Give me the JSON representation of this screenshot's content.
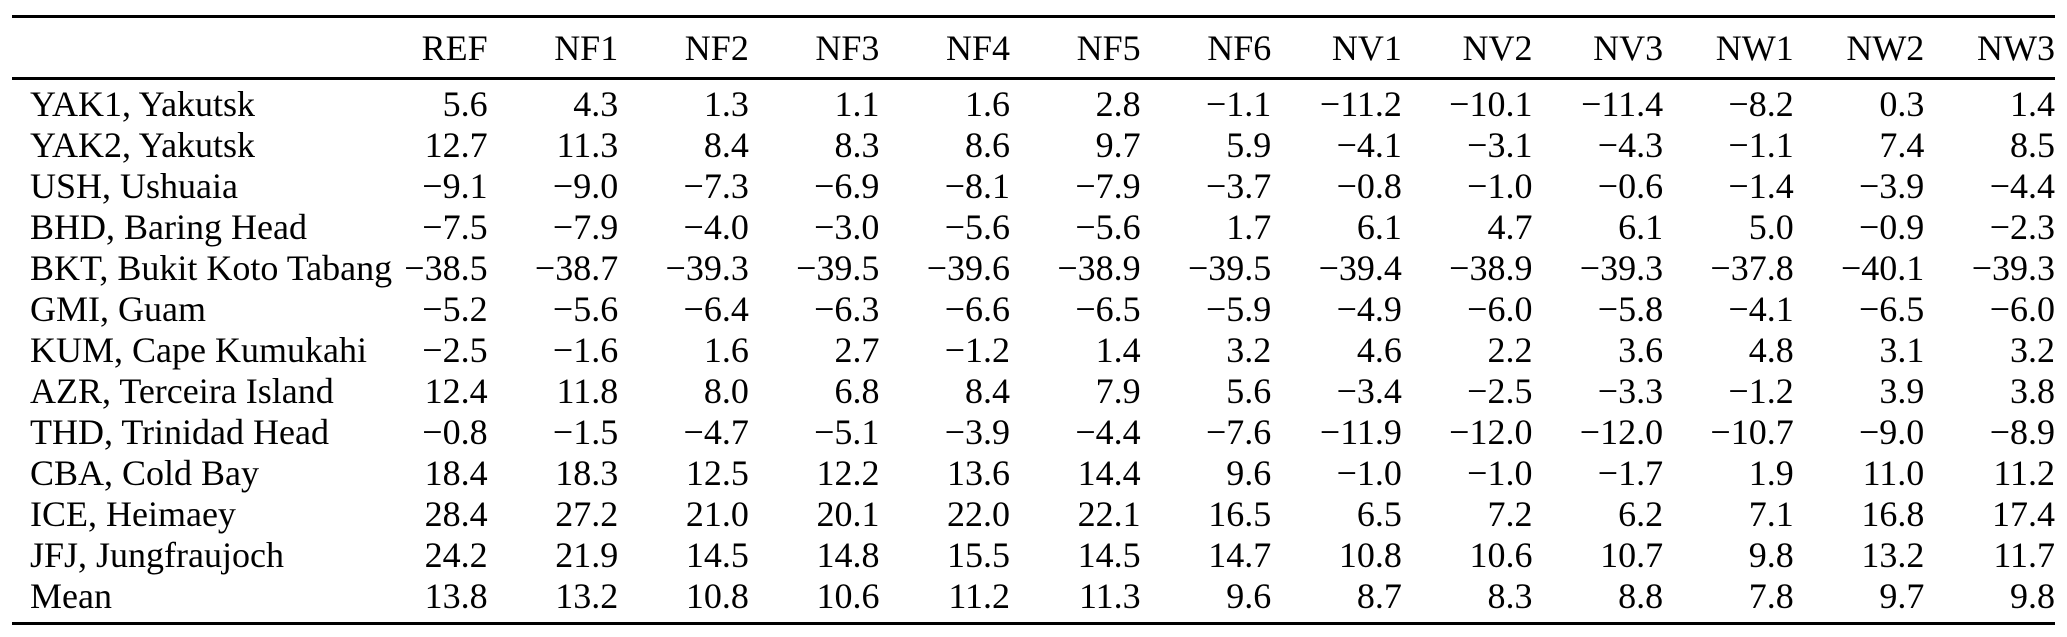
{
  "page": {
    "background_color": "#ffffff",
    "text_color": "#000000",
    "rule_color": "#000000"
  },
  "table": {
    "columns": [
      "REF",
      "NF1",
      "NF2",
      "NF3",
      "NF4",
      "NF5",
      "NF6",
      "NV1",
      "NV2",
      "NV3",
      "NW1",
      "NW2",
      "NW3"
    ],
    "rows": [
      {
        "label": "YAK1, Yakutsk",
        "values": [
          "5.6",
          "4.3",
          "1.3",
          "1.1",
          "1.6",
          "2.8",
          "−1.1",
          "−11.2",
          "−10.1",
          "−11.4",
          "−8.2",
          "0.3",
          "1.4"
        ]
      },
      {
        "label": "YAK2, Yakutsk",
        "values": [
          "12.7",
          "11.3",
          "8.4",
          "8.3",
          "8.6",
          "9.7",
          "5.9",
          "−4.1",
          "−3.1",
          "−4.3",
          "−1.1",
          "7.4",
          "8.5"
        ]
      },
      {
        "label": "USH, Ushuaia",
        "values": [
          "−9.1",
          "−9.0",
          "−7.3",
          "−6.9",
          "−8.1",
          "−7.9",
          "−3.7",
          "−0.8",
          "−1.0",
          "−0.6",
          "−1.4",
          "−3.9",
          "−4.4"
        ]
      },
      {
        "label": "BHD, Baring Head",
        "values": [
          "−7.5",
          "−7.9",
          "−4.0",
          "−3.0",
          "−5.6",
          "−5.6",
          "1.7",
          "6.1",
          "4.7",
          "6.1",
          "5.0",
          "−0.9",
          "−2.3"
        ]
      },
      {
        "label": "BKT, Bukit Koto Tabang",
        "values": [
          "−38.5",
          "−38.7",
          "−39.3",
          "−39.5",
          "−39.6",
          "−38.9",
          "−39.5",
          "−39.4",
          "−38.9",
          "−39.3",
          "−37.8",
          "−40.1",
          "−39.3"
        ]
      },
      {
        "label": "GMI, Guam",
        "values": [
          "−5.2",
          "−5.6",
          "−6.4",
          "−6.3",
          "−6.6",
          "−6.5",
          "−5.9",
          "−4.9",
          "−6.0",
          "−5.8",
          "−4.1",
          "−6.5",
          "−6.0"
        ]
      },
      {
        "label": "KUM, Cape Kumukahi",
        "values": [
          "−2.5",
          "−1.6",
          "1.6",
          "2.7",
          "−1.2",
          "1.4",
          "3.2",
          "4.6",
          "2.2",
          "3.6",
          "4.8",
          "3.1",
          "3.2"
        ]
      },
      {
        "label": "AZR, Terceira Island",
        "values": [
          "12.4",
          "11.8",
          "8.0",
          "6.8",
          "8.4",
          "7.9",
          "5.6",
          "−3.4",
          "−2.5",
          "−3.3",
          "−1.2",
          "3.9",
          "3.8"
        ]
      },
      {
        "label": "THD, Trinidad Head",
        "values": [
          "−0.8",
          "−1.5",
          "−4.7",
          "−5.1",
          "−3.9",
          "−4.4",
          "−7.6",
          "−11.9",
          "−12.0",
          "−12.0",
          "−10.7",
          "−9.0",
          "−8.9"
        ]
      },
      {
        "label": "CBA, Cold Bay",
        "values": [
          "18.4",
          "18.3",
          "12.5",
          "12.2",
          "13.6",
          "14.4",
          "9.6",
          "−1.0",
          "−1.0",
          "−1.7",
          "1.9",
          "11.0",
          "11.2"
        ]
      },
      {
        "label": "ICE, Heimaey",
        "values": [
          "28.4",
          "27.2",
          "21.0",
          "20.1",
          "22.0",
          "22.1",
          "16.5",
          "6.5",
          "7.2",
          "6.2",
          "7.1",
          "16.8",
          "17.4"
        ]
      },
      {
        "label": "JFJ, Jungfraujoch",
        "values": [
          "24.2",
          "21.9",
          "14.5",
          "14.8",
          "15.5",
          "14.5",
          "14.7",
          "10.8",
          "10.6",
          "10.7",
          "9.8",
          "13.2",
          "11.7"
        ]
      },
      {
        "label": "Mean",
        "values": [
          "13.8",
          "13.2",
          "10.8",
          "10.6",
          "11.2",
          "11.3",
          "9.6",
          "8.7",
          "8.3",
          "8.8",
          "7.8",
          "9.7",
          "9.8"
        ]
      }
    ]
  }
}
